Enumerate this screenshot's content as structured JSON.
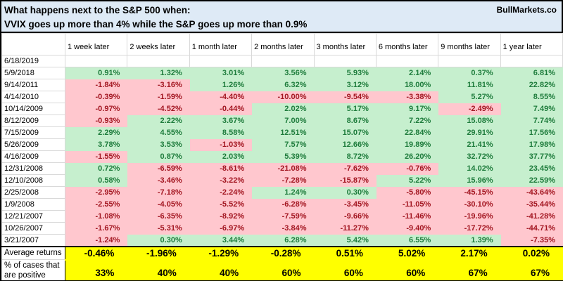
{
  "title": {
    "line1": "What happens next to the S&P 500 when:",
    "line2": "VVIX goes up more than 4% while the S&P goes up more than 0.9%",
    "brand": "BullMarkets.co"
  },
  "colors": {
    "title_background": "#DEEAF6",
    "positive_fill": "#C6EFCE",
    "positive_text": "#1E7C3C",
    "negative_fill": "#FFC7CE",
    "negative_text": "#A31621",
    "summary_fill": "#FFFF00",
    "gridline": "#D9D9D9"
  },
  "chart_data": {
    "type": "table",
    "columns": [
      "",
      "1 week later",
      "2 weeks later",
      "1 month later",
      "2 months later",
      "3 months later",
      "6 months later",
      "9 months later",
      "1 year later"
    ],
    "rows": [
      {
        "date": "6/18/2019",
        "values": [
          null,
          null,
          null,
          null,
          null,
          null,
          null,
          null
        ]
      },
      {
        "date": "5/9/2018",
        "values": [
          "0.91%",
          "1.32%",
          "3.01%",
          "3.56%",
          "5.93%",
          "2.14%",
          "0.37%",
          "6.81%"
        ]
      },
      {
        "date": "9/14/2011",
        "values": [
          "-1.84%",
          "-3.16%",
          "1.26%",
          "6.32%",
          "3.12%",
          "18.00%",
          "11.81%",
          "22.82%"
        ]
      },
      {
        "date": "4/14/2010",
        "values": [
          "-0.39%",
          "-1.59%",
          "-4.40%",
          "-10.00%",
          "-9.54%",
          "-3.38%",
          "5.27%",
          "8.55%"
        ]
      },
      {
        "date": "10/14/2009",
        "values": [
          "-0.97%",
          "-4.52%",
          "-0.44%",
          "2.02%",
          "5.17%",
          "9.17%",
          "-2.49%",
          "7.49%"
        ]
      },
      {
        "date": "8/12/2009",
        "values": [
          "-0.93%",
          "2.22%",
          "3.67%",
          "7.00%",
          "8.67%",
          "7.22%",
          "15.08%",
          "7.74%"
        ]
      },
      {
        "date": "7/15/2009",
        "values": [
          "2.29%",
          "4.55%",
          "8.58%",
          "12.51%",
          "15.07%",
          "22.84%",
          "29.91%",
          "17.56%"
        ]
      },
      {
        "date": "5/26/2009",
        "values": [
          "3.78%",
          "3.53%",
          "-1.03%",
          "7.57%",
          "12.66%",
          "19.89%",
          "21.41%",
          "17.98%"
        ]
      },
      {
        "date": "4/16/2009",
        "values": [
          "-1.55%",
          "0.87%",
          "2.03%",
          "5.39%",
          "8.72%",
          "26.20%",
          "32.72%",
          "37.77%"
        ]
      },
      {
        "date": "12/31/2008",
        "values": [
          "0.72%",
          "-6.59%",
          "-8.61%",
          "-21.08%",
          "-7.62%",
          "-0.76%",
          "14.02%",
          "23.45%"
        ]
      },
      {
        "date": "12/10/2008",
        "values": [
          "0.58%",
          "-3.46%",
          "-3.22%",
          "-7.28%",
          "-15.87%",
          "5.22%",
          "15.96%",
          "22.59%"
        ]
      },
      {
        "date": "2/25/2008",
        "values": [
          "-2.95%",
          "-7.18%",
          "-2.24%",
          "1.24%",
          "0.30%",
          "-5.80%",
          "-45.15%",
          "-43.64%"
        ]
      },
      {
        "date": "1/9/2008",
        "values": [
          "-2.55%",
          "-4.05%",
          "-5.52%",
          "-6.28%",
          "-3.45%",
          "-11.05%",
          "-30.10%",
          "-35.44%"
        ]
      },
      {
        "date": "12/21/2007",
        "values": [
          "-1.08%",
          "-6.35%",
          "-8.92%",
          "-7.59%",
          "-9.66%",
          "-11.46%",
          "-19.96%",
          "-41.28%"
        ]
      },
      {
        "date": "10/26/2007",
        "values": [
          "-1.67%",
          "-5.31%",
          "-6.97%",
          "-3.84%",
          "-11.27%",
          "-9.40%",
          "-17.72%",
          "-44.71%"
        ]
      },
      {
        "date": "3/21/2007",
        "values": [
          "-1.24%",
          "0.30%",
          "3.44%",
          "6.28%",
          "5.42%",
          "6.55%",
          "1.39%",
          "-7.35%"
        ]
      }
    ],
    "summary": {
      "average_label": "Average returns",
      "average_values": [
        "-0.46%",
        "-1.96%",
        "-1.29%",
        "-0.28%",
        "0.51%",
        "5.02%",
        "2.17%",
        "0.02%"
      ],
      "positive_label_line1": "% of cases that",
      "positive_label_line2": "are positive",
      "positive_values": [
        "33%",
        "40%",
        "40%",
        "60%",
        "60%",
        "60%",
        "67%",
        "67%"
      ]
    }
  }
}
